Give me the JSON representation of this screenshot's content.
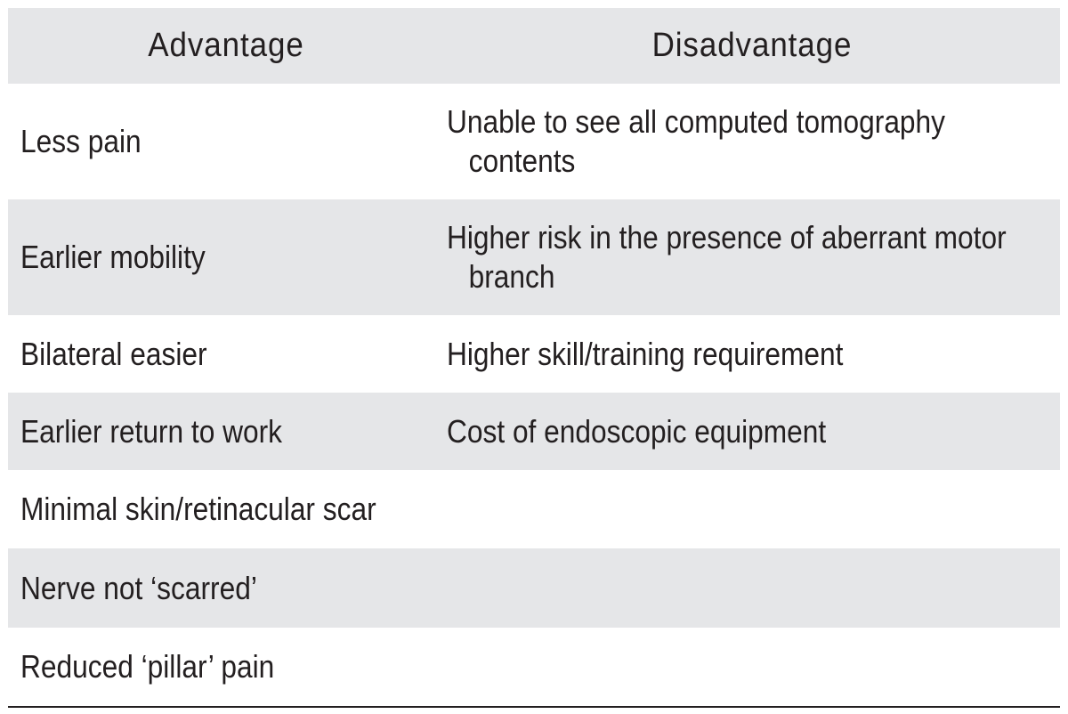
{
  "table": {
    "headers": {
      "advantage": "Advantage",
      "disadvantage": "Disadvantage"
    },
    "rows": [
      {
        "advantage": "Less pain",
        "disadvantage_line1": "Unable to see all computed tomography",
        "disadvantage_line2": "contents"
      },
      {
        "advantage": "Earlier mobility",
        "disadvantage_line1": "Higher risk in the presence of aberrant motor",
        "disadvantage_line2": "branch"
      },
      {
        "advantage": "Bilateral easier",
        "disadvantage_line1": "Higher skill/training requirement"
      },
      {
        "advantage": "Earlier return to work",
        "disadvantage_line1": "Cost of endoscopic equipment"
      },
      {
        "advantage": "Minimal skin/retinacular scar"
      },
      {
        "advantage": "Nerve not ‘scarred’"
      },
      {
        "advantage": "Reduced ‘pillar’ pain"
      }
    ]
  },
  "colors": {
    "shaded_row": "#e5e6e8",
    "text": "#231f20",
    "background": "#ffffff"
  }
}
